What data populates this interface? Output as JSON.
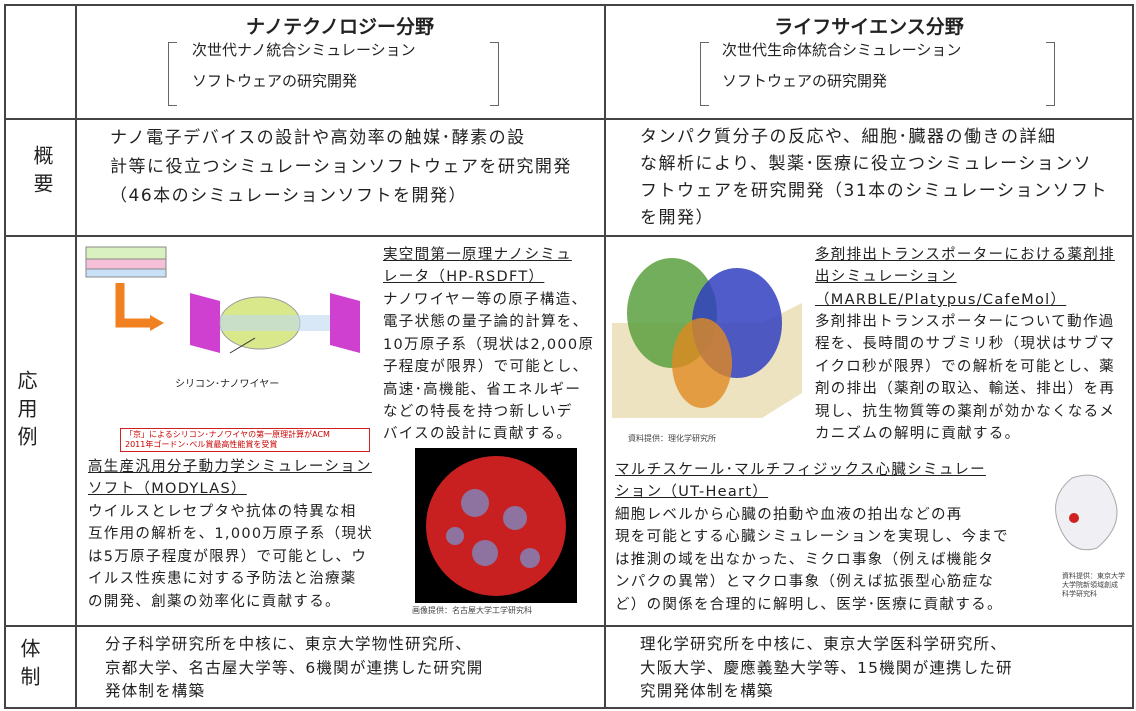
{
  "header": {
    "nano": {
      "title": "ナノテクノロジー分野",
      "subtitle": [
        "次世代ナノ統合シミュレーション",
        "ソフトウェアの研究開発"
      ]
    },
    "life": {
      "title": "ライフサイエンス分野",
      "subtitle": [
        "次世代生命体統合シミュレーション",
        "ソフトウェアの研究開発"
      ]
    }
  },
  "rows": {
    "overview": "概要",
    "examples": "応用例",
    "organization": "体制"
  },
  "overview": {
    "nano": [
      "ナノ電子デバイスの設計や高効率の触媒･酵素の設",
      "計等に役立つシミュレーションソフトウェアを研究開発",
      "（46本のシミュレーションソフトを開発）"
    ],
    "life": [
      "タンパク質分子の反応や、細胞･臓器の働きの詳細",
      "な解析により、製薬･医療に役立つシミュレーションソ",
      "フトウェアを研究開発（31本のシミュレーションソフト",
      "を開発）"
    ]
  },
  "examples": {
    "rsdft": {
      "title": [
        "実空間第一原理ナノシミュ",
        "レータ（HP-RSDFT）"
      ],
      "body": [
        "ナノワイヤー等の原子構造、",
        "電子状態の量子論的計算を、",
        "10万原子系（現状は2,000原",
        "子程度が限界）で可能とし、",
        "高速･高機能、省エネルギー",
        "などの特長を持つ新しいデ",
        "バイスの設計に貢献する。"
      ],
      "figure_label": "シリコン･ナノワイヤー",
      "award": [
        "「京」によるシリコン･ナノワイヤの第一原理計算がACM",
        "2011年ゴードン･ベル賞最高性能賞を受賞"
      ]
    },
    "modylas": {
      "title": [
        "高生産汎用分子動力学シミュレーション",
        "ソフト（MODYLAS）"
      ],
      "body": [
        "ウイルスとレセプタや抗体の特異な相",
        "互作用の解析を、1,000万原子系（現状",
        "は5万原子程度が限界）で可能とし、ウ",
        "イルス性疾患に対する予防法と治療薬",
        "の開発、創薬の効率化に貢献する。"
      ],
      "credit": "画像提供：名古屋大学工学研究科"
    },
    "marble": {
      "title": [
        "多剤排出トランスポーターにおける薬剤排",
        "出シミュレーション",
        "（MARBLE/Platypus/CafeMol）"
      ],
      "body": [
        "多剤排出トランスポーターについて動作過",
        "程を、長時間のサブミリ秒（現状はサブマ",
        "イクロ秒が限界）での解析を可能とし、薬",
        "剤の排出（薬剤の取込、輸送、排出）を再",
        "現し、抗生物質等の薬剤が効かなくなるメ",
        "カニズムの解明に貢献する。"
      ],
      "credit": "資料提供：理化学研究所"
    },
    "utheart": {
      "title": [
        "マルチスケール･マルチフィジックス心臓シミュレー",
        "ション（UT-Heart）"
      ],
      "body": [
        "細胞レベルから心臓の拍動や血液の拍出などの再",
        "現を可能とする心臓シミュレーションを実現し、今まで",
        "は推測の域を出なかった、ミクロ事象（例えば機能タ",
        "ンパクの異常）とマクロ事象（例えば拡張型心筋症な",
        "ど）の関係を合理的に解明し、医学･医療に貢献する。"
      ],
      "credit": [
        "資料提供：東京大学",
        "大学院新領域創成",
        "科学研究科"
      ]
    }
  },
  "organization": {
    "nano": [
      "分子科学研究所を中核に、東京大学物性研究所、",
      "京都大学、名古屋大学等、6機関が連携した研究開",
      "発体制を構築"
    ],
    "life": [
      "理化学研究所を中核に、東京大学医科学研究所、",
      "大阪大学、慶應義塾大学等、15機関が連携した研",
      "究開発体制を構築"
    ]
  }
}
